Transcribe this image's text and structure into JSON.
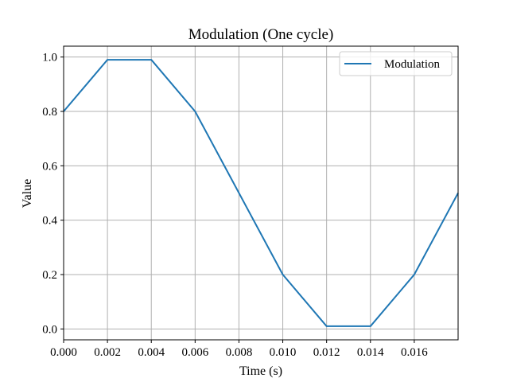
{
  "chart_data": {
    "type": "line",
    "title": "Modulation (One cycle)",
    "xlabel": "Time (s)",
    "ylabel": "Value",
    "xlim": [
      0.0,
      0.018
    ],
    "ylim": [
      -0.04,
      1.04
    ],
    "x_ticks": [
      "0.000",
      "0.002",
      "0.004",
      "0.006",
      "0.008",
      "0.010",
      "0.012",
      "0.014",
      "0.016"
    ],
    "y_ticks": [
      "0.0",
      "0.2",
      "0.4",
      "0.6",
      "0.8",
      "1.0"
    ],
    "grid": true,
    "legend_position": "top-right",
    "series": [
      {
        "name": "Modulation",
        "color": "#1f77b4",
        "x": [
          0.0,
          0.002,
          0.004,
          0.006,
          0.008,
          0.01,
          0.012,
          0.014,
          0.016,
          0.018
        ],
        "y": [
          0.8,
          0.99,
          0.99,
          0.8,
          0.5,
          0.2,
          0.01,
          0.01,
          0.2,
          0.5
        ]
      }
    ]
  }
}
